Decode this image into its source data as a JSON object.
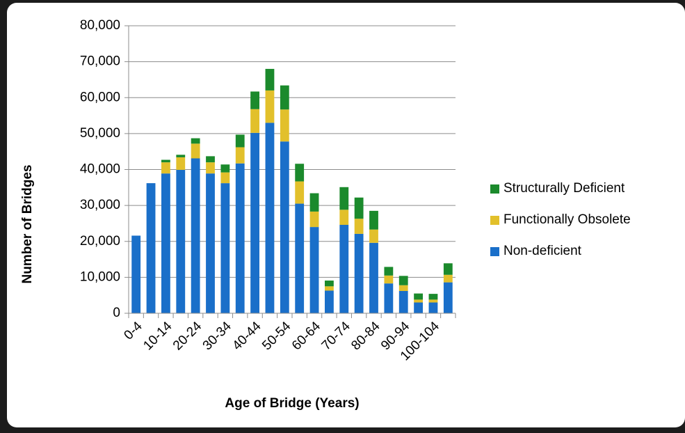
{
  "chart_data": {
    "type": "stacked_bar",
    "x_label": "Age of Bridge (Years)",
    "y_label": "Number of Bridges",
    "categories": [
      "0-4",
      null,
      "10-14",
      null,
      "20-24",
      null,
      "30-34",
      null,
      "40-44",
      null,
      "50-54",
      null,
      "60-64",
      null,
      "70-74",
      null,
      "80-84",
      null,
      "90-94",
      null,
      "100-104",
      null
    ],
    "series": [
      {
        "name": "Non-deficient",
        "color": "#1a6fc9",
        "values": [
          21600,
          36200,
          38900,
          39900,
          43100,
          38900,
          36200,
          41700,
          50200,
          53000,
          47800,
          30500,
          24000,
          6300,
          24600,
          22100,
          19600,
          8300,
          6200,
          3000,
          3000,
          8600
        ]
      },
      {
        "name": "Functionally Obsolete",
        "color": "#e2c02b",
        "values": [
          0,
          0,
          3100,
          3500,
          4100,
          3100,
          3000,
          4500,
          6600,
          9000,
          8900,
          6200,
          4300,
          1200,
          4200,
          4200,
          3700,
          2200,
          1600,
          800,
          800,
          2100
        ]
      },
      {
        "name": "Structurally Deficient",
        "color": "#1b8a2c",
        "values": [
          0,
          0,
          700,
          700,
          1500,
          1700,
          2200,
          3500,
          4900,
          6000,
          6700,
          4900,
          5100,
          1600,
          6300,
          5900,
          5200,
          2400,
          2600,
          1700,
          1600,
          3200
        ]
      }
    ],
    "ylim": [
      0,
      80000
    ],
    "yticks": [
      0,
      {
        "value": 10000,
        "label": "10,000"
      },
      {
        "value": 20000,
        "label": "20,000"
      },
      {
        "value": 30000,
        "label": "30,000"
      },
      {
        "value": 40000,
        "label": "40,000"
      },
      {
        "value": 50000,
        "label": "50,000"
      },
      {
        "value": 60000,
        "label": "60,000"
      },
      {
        "value": 70000,
        "label": "70,000"
      },
      {
        "value": 80000,
        "label": "80,000"
      }
    ],
    "grid": true,
    "legend": "right"
  }
}
